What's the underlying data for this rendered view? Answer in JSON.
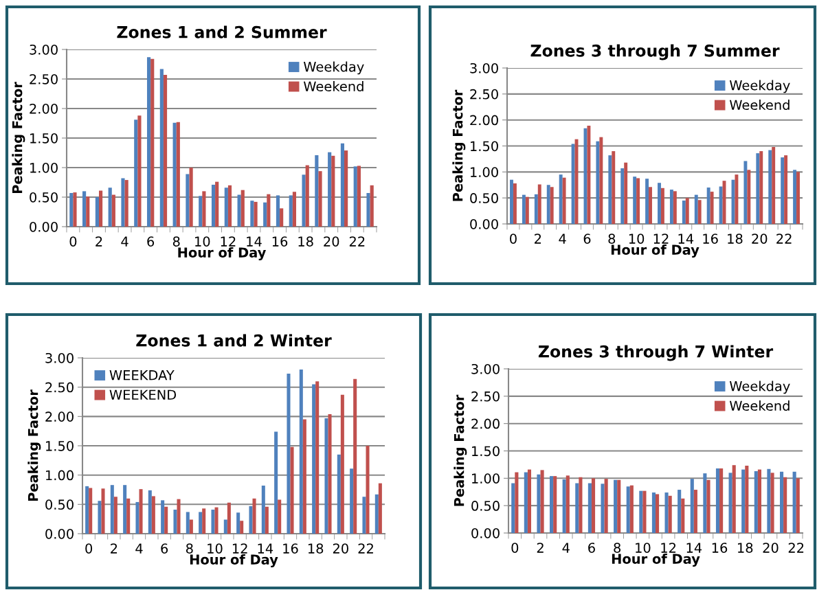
{
  "chart_data": [
    {
      "type": "bar",
      "title": "Zones 1 and 2 Summer",
      "xlabel": "Hour of Day",
      "ylabel": "Peaking Factor",
      "categories": [
        "0",
        null,
        "2",
        null,
        "4",
        null,
        "6",
        null,
        "8",
        null,
        "10",
        null,
        "12",
        null,
        "14",
        null,
        "16",
        null,
        "18",
        null,
        "20",
        null,
        "22",
        null
      ],
      "series": [
        {
          "name": "Weekday",
          "color": "#4f81bd",
          "values": [
            0.57,
            0.6,
            0.5,
            0.66,
            0.82,
            1.81,
            2.87,
            2.67,
            1.76,
            0.89,
            0.52,
            0.71,
            0.66,
            0.54,
            0.44,
            0.41,
            0.53,
            0.53,
            0.88,
            1.21,
            1.26,
            1.41,
            1.02,
            0.57
          ]
        },
        {
          "name": "Weekend",
          "color": "#c0504d",
          "values": [
            0.58,
            0.51,
            0.61,
            0.54,
            0.79,
            1.88,
            2.84,
            2.57,
            1.77,
            1.0,
            0.6,
            0.76,
            0.7,
            0.62,
            0.42,
            0.55,
            0.31,
            0.59,
            1.04,
            0.94,
            1.2,
            1.29,
            1.03,
            0.7
          ]
        }
      ],
      "ylim": [
        0,
        3
      ],
      "yticks": [
        {
          "value": 0,
          "label": "0.00"
        },
        {
          "value": 0.5,
          "label": "0.50"
        },
        {
          "value": 1,
          "label": "1.00"
        },
        {
          "value": 1.5,
          "label": "1.50"
        },
        {
          "value": 2,
          "label": "2.00"
        },
        {
          "value": 2.5,
          "label": "2.50"
        },
        {
          "value": 3,
          "label": "3.00"
        }
      ],
      "grid": "y",
      "legend": "upper right"
    },
    {
      "type": "bar",
      "title": "Zones 3 through 7 Summer",
      "xlabel": "Hour of Day",
      "ylabel": "Peaking Factor",
      "categories": [
        "0",
        null,
        "2",
        null,
        "4",
        null,
        "6",
        null,
        "8",
        null,
        "10",
        null,
        "12",
        null,
        "14",
        null,
        "16",
        null,
        "18",
        null,
        "20",
        null,
        "22",
        null
      ],
      "series": [
        {
          "name": "Weekday",
          "color": "#4f81bd",
          "values": [
            0.85,
            0.56,
            0.57,
            0.75,
            0.95,
            1.54,
            1.84,
            1.59,
            1.32,
            1.07,
            0.91,
            0.87,
            0.79,
            0.66,
            0.45,
            0.56,
            0.7,
            0.72,
            0.85,
            1.21,
            1.36,
            1.42,
            1.28,
            1.04
          ]
        },
        {
          "name": "Weekend",
          "color": "#c0504d",
          "values": [
            0.78,
            0.52,
            0.76,
            0.71,
            0.89,
            1.63,
            1.89,
            1.67,
            1.4,
            1.18,
            0.88,
            0.71,
            0.69,
            0.63,
            0.5,
            0.46,
            0.62,
            0.83,
            0.95,
            1.04,
            1.4,
            1.48,
            1.32,
            1.0
          ]
        }
      ],
      "ylim": [
        0,
        3
      ],
      "yticks": [
        {
          "value": 0,
          "label": "0.00"
        },
        {
          "value": 0.5,
          "label": "0.50"
        },
        {
          "value": 1,
          "label": "1.00"
        },
        {
          "value": 1.5,
          "label": "1.50"
        },
        {
          "value": 2,
          "label": "2.00"
        },
        {
          "value": 2.5,
          "label": "2.50"
        },
        {
          "value": 3,
          "label": "3.00"
        }
      ],
      "grid": "y",
      "legend": "upper right"
    },
    {
      "type": "bar",
      "title": "Zones 1 and 2 Winter",
      "xlabel": "Hour of Day",
      "ylabel": "Peaking Factor",
      "categories": [
        "0",
        null,
        "2",
        null,
        "4",
        null,
        "6",
        null,
        "8",
        null,
        "10",
        null,
        "12",
        null,
        "14",
        null,
        "16",
        null,
        "18",
        null,
        "20",
        null,
        "22",
        null
      ],
      "series": [
        {
          "name": "WEEKDAY",
          "color": "#4f81bd",
          "values": [
            0.81,
            0.56,
            0.83,
            0.83,
            0.54,
            0.74,
            0.57,
            0.41,
            0.37,
            0.37,
            0.41,
            0.24,
            0.36,
            0.47,
            0.82,
            1.74,
            2.73,
            2.8,
            2.55,
            1.97,
            1.35,
            1.11,
            0.63,
            0.67
          ]
        },
        {
          "name": "WEEKEND",
          "color": "#c0504d",
          "values": [
            0.78,
            0.77,
            0.63,
            0.6,
            0.76,
            0.64,
            0.46,
            0.59,
            0.24,
            0.43,
            0.45,
            0.53,
            0.22,
            0.6,
            0.46,
            0.58,
            1.48,
            1.95,
            2.6,
            2.04,
            2.37,
            2.64,
            1.5,
            0.86
          ]
        }
      ],
      "ylim": [
        0,
        3
      ],
      "yticks": [
        {
          "value": 0,
          "label": "0.00"
        },
        {
          "value": 0.5,
          "label": "0.50"
        },
        {
          "value": 1,
          "label": "1.00"
        },
        {
          "value": 1.5,
          "label": "1.50"
        },
        {
          "value": 2,
          "label": "2.00"
        },
        {
          "value": 2.5,
          "label": "2.50"
        },
        {
          "value": 3,
          "label": "3.00"
        }
      ],
      "grid": "y",
      "legend": "upper left"
    },
    {
      "type": "bar",
      "title": "Zones 3 through 7 Winter",
      "xlabel": "Hour of Day",
      "ylabel": "Peaking Factor",
      "categories": [
        "0",
        null,
        "2",
        null,
        "4",
        null,
        "6",
        null,
        "8",
        null,
        "10",
        null,
        "12",
        null,
        "14",
        null,
        "16",
        null,
        "18",
        null,
        "20",
        null,
        "22"
      ],
      "series": [
        {
          "name": "Weekday",
          "color": "#4f81bd",
          "values": [
            0.91,
            1.11,
            1.07,
            1.04,
            0.98,
            0.91,
            0.91,
            0.9,
            0.97,
            0.85,
            0.77,
            0.74,
            0.74,
            0.79,
            0.99,
            1.09,
            1.18,
            1.1,
            1.16,
            1.13,
            1.17,
            1.12,
            1.12
          ]
        },
        {
          "name": "Weekend",
          "color": "#c0504d",
          "values": [
            1.11,
            1.16,
            1.15,
            1.04,
            1.05,
            1.02,
            1.0,
            0.99,
            0.97,
            0.87,
            0.77,
            0.71,
            0.68,
            0.63,
            0.79,
            0.97,
            1.18,
            1.24,
            1.23,
            1.16,
            1.1,
            1.02,
            1.0
          ]
        }
      ],
      "ylim": [
        0,
        3
      ],
      "yticks": [
        {
          "value": 0,
          "label": "0.00"
        },
        {
          "value": 0.5,
          "label": "0.50"
        },
        {
          "value": 1,
          "label": "1.00"
        },
        {
          "value": 1.5,
          "label": "1.50"
        },
        {
          "value": 2,
          "label": "2.00"
        },
        {
          "value": 2.5,
          "label": "2.50"
        },
        {
          "value": 3,
          "label": "3.00"
        }
      ],
      "grid": "y",
      "legend": "upper right"
    }
  ]
}
